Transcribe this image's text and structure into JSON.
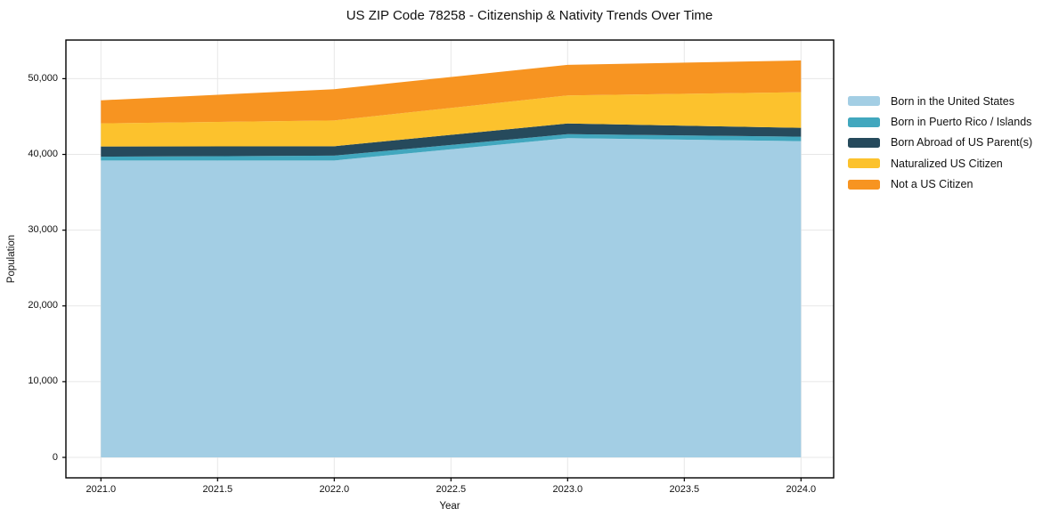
{
  "chart_data": {
    "type": "area",
    "stacked": true,
    "title": "US ZIP Code 78258 - Citizenship & Nativity Trends Over Time",
    "xlabel": "Year",
    "ylabel": "Population",
    "x": [
      2021,
      2022,
      2023,
      2024
    ],
    "series": [
      {
        "name": "Born in the United States",
        "color": "#A3CEE4",
        "values": [
          39200,
          39200,
          42150,
          41750
        ]
      },
      {
        "name": "Born in Puerto Rico / Islands",
        "color": "#41A7BE",
        "values": [
          500,
          640,
          520,
          590
        ]
      },
      {
        "name": "Born Abroad of US Parent(s)",
        "color": "#264A5C",
        "values": [
          1340,
          1240,
          1410,
          1170
        ]
      },
      {
        "name": "Naturalized US Citizen",
        "color": "#FCC22D",
        "values": [
          3060,
          3410,
          3710,
          4710
        ]
      },
      {
        "name": "Not a US Citizen",
        "color": "#F79421",
        "values": [
          3040,
          4120,
          4030,
          4190
        ]
      }
    ],
    "totals": [
      47140,
      48610,
      51820,
      52410
    ],
    "xlim": [
      2020.85,
      2024.14
    ],
    "ylim": [
      -2700,
      55100
    ],
    "xticks": {
      "values": [
        2021.0,
        2021.5,
        2022.0,
        2022.5,
        2023.0,
        2023.5,
        2024.0
      ],
      "labels": [
        "2021.0",
        "2021.5",
        "2022.0",
        "2022.5",
        "2023.0",
        "2023.5",
        "2024.0"
      ]
    },
    "yticks": {
      "values": [
        0,
        10000,
        20000,
        30000,
        40000,
        50000
      ],
      "labels": [
        "0",
        "10,000",
        "20,000",
        "30,000",
        "40,000",
        "50,000"
      ]
    },
    "grid": true,
    "legend_position": "right-outside"
  },
  "colors": {
    "background": "#FFFFFF",
    "gridline": "#E7E7E7",
    "spine": "#000000",
    "tick": "#000000",
    "text": "#111111"
  }
}
